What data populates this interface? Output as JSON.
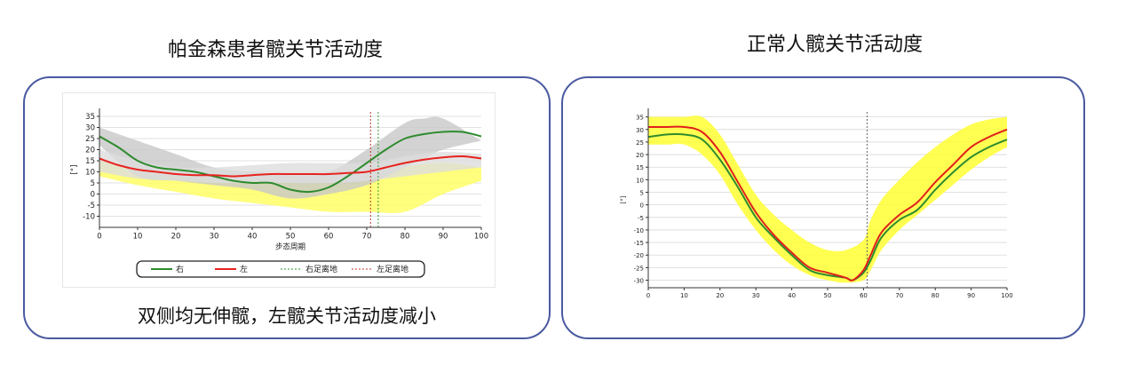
{
  "titles": {
    "left": "帕金森患者髋关节活动度",
    "right": "正常人髋关节活动度"
  },
  "caption_left": "双侧均无伸髋，左髋关节活动度减小",
  "chart_data": [
    {
      "type": "line",
      "ylabel": "[°]",
      "xlabel": "步态周期",
      "xlim": [
        0,
        100
      ],
      "ylim": [
        -15,
        37
      ],
      "x_ticks": [
        0,
        10,
        20,
        30,
        40,
        50,
        60,
        70,
        80,
        90,
        100
      ],
      "y_ticks": [
        35,
        30,
        25,
        20,
        15,
        10,
        5,
        0,
        -5,
        -10
      ],
      "grid": true,
      "series": [
        {
          "name": "右",
          "color": "#2e8b2e",
          "x": [
            0,
            5,
            10,
            15,
            20,
            25,
            30,
            35,
            40,
            45,
            50,
            55,
            60,
            65,
            70,
            75,
            80,
            85,
            90,
            95,
            100
          ],
          "y": [
            26,
            21,
            15,
            12,
            11,
            10,
            8,
            6,
            5,
            5,
            2,
            1,
            3,
            8,
            14,
            20,
            25,
            27,
            28,
            28,
            26
          ]
        },
        {
          "name": "左",
          "color": "#e8231e",
          "x": [
            0,
            5,
            10,
            15,
            20,
            25,
            30,
            35,
            40,
            45,
            50,
            55,
            60,
            65,
            70,
            75,
            80,
            85,
            90,
            95,
            100
          ],
          "y": [
            16,
            13,
            11,
            10,
            9,
            8.5,
            8.5,
            8,
            8.5,
            9,
            9,
            9,
            9,
            9.5,
            10,
            12,
            14,
            15.5,
            16.5,
            17,
            16
          ]
        },
        {
          "name": "右足离地",
          "color": "#2e9b2e",
          "style": "dotted",
          "x_value": 73
        },
        {
          "name": "左足离地",
          "color": "#c0392b",
          "style": "dotted",
          "x_value": 71
        }
      ],
      "bands": [
        {
          "label": "normal",
          "color": "#ffff66",
          "x": [
            0,
            10,
            20,
            30,
            40,
            50,
            60,
            70,
            80,
            90,
            100
          ],
          "upper": [
            15,
            11,
            8,
            7,
            6,
            5,
            5,
            6,
            12,
            14,
            12
          ],
          "lower": [
            8,
            4,
            1,
            -2,
            -4,
            -6,
            -8,
            -8,
            -8,
            0,
            6
          ]
        },
        {
          "label": "right-sd",
          "color": "#c8c8c8",
          "x": [
            0,
            10,
            20,
            30,
            40,
            50,
            60,
            70,
            80,
            85,
            90,
            100
          ],
          "upper": [
            30,
            24,
            18,
            12,
            10,
            9,
            10,
            20,
            32,
            34,
            34,
            24
          ],
          "lower": [
            22,
            8,
            6,
            4,
            2,
            -2,
            0,
            4,
            12,
            16,
            20,
            24
          ]
        },
        {
          "label": "left-sd",
          "color": "#dddddd",
          "x": [
            0,
            10,
            20,
            30,
            40,
            50,
            60,
            70,
            80,
            90,
            100
          ],
          "upper": [
            20,
            15,
            12,
            12,
            13,
            14,
            14,
            14,
            17,
            19,
            18
          ],
          "lower": [
            10,
            7,
            6,
            5,
            5,
            5,
            5,
            6,
            8,
            10,
            12
          ]
        }
      ],
      "legend": {
        "placement": "bottom",
        "items": [
          "右",
          "左",
          "右足离地",
          "左足离地"
        ]
      }
    },
    {
      "type": "line",
      "ylabel": "[°]",
      "xlim": [
        0,
        100
      ],
      "ylim": [
        -33,
        37
      ],
      "x_ticks": [
        0,
        10,
        20,
        30,
        40,
        50,
        60,
        70,
        80,
        90,
        100
      ],
      "y_ticks": [
        35,
        30,
        25,
        20,
        15,
        10,
        5,
        0,
        -5,
        -10,
        -15,
        -20,
        -25,
        -30
      ],
      "grid": true,
      "vline_x": 61,
      "series": [
        {
          "name": "",
          "color": "#2e8b2e",
          "x": [
            0,
            5,
            10,
            15,
            20,
            25,
            30,
            35,
            40,
            45,
            50,
            55,
            57,
            60,
            62,
            65,
            70,
            75,
            80,
            85,
            90,
            95,
            100
          ],
          "y": [
            27,
            28,
            28,
            26,
            18,
            7,
            -5,
            -13,
            -20,
            -26,
            -28,
            -29,
            -30,
            -27,
            -22,
            -13,
            -6,
            -2,
            6,
            13,
            19,
            23,
            26
          ]
        },
        {
          "name": "",
          "color": "#e0201c",
          "x": [
            0,
            5,
            10,
            15,
            20,
            25,
            30,
            35,
            40,
            45,
            50,
            55,
            57,
            60,
            62,
            65,
            70,
            75,
            80,
            85,
            90,
            95,
            100
          ],
          "y": [
            31,
            31,
            31,
            29,
            21,
            9,
            -3,
            -12,
            -19,
            -25,
            -27,
            -29,
            -30,
            -26,
            -20,
            -11,
            -4,
            1,
            9,
            16,
            23,
            27,
            30
          ]
        }
      ],
      "bands": [
        {
          "label": "normal",
          "color": "#ffff33",
          "x": [
            0,
            5,
            10,
            15,
            20,
            25,
            30,
            35,
            40,
            45,
            50,
            55,
            60,
            62,
            65,
            70,
            75,
            80,
            85,
            90,
            95,
            100
          ],
          "upper": [
            35,
            35,
            35,
            35,
            28,
            16,
            4,
            -4,
            -10,
            -15,
            -18,
            -18,
            -14,
            -6,
            2,
            10,
            17,
            23,
            28,
            32,
            34,
            35
          ],
          "lower": [
            24,
            24,
            24,
            20,
            12,
            0,
            -10,
            -18,
            -24,
            -28,
            -30,
            -31,
            -30,
            -26,
            -18,
            -10,
            -4,
            2,
            8,
            14,
            19,
            23
          ]
        }
      ]
    }
  ]
}
